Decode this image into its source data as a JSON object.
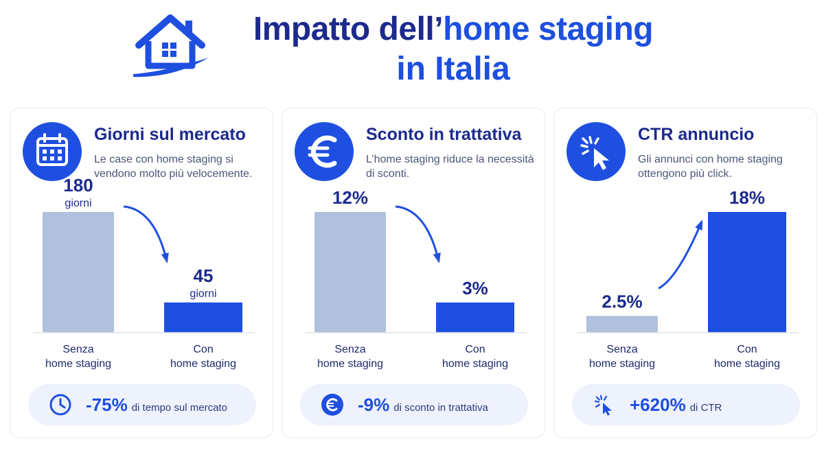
{
  "header": {
    "title_part1": "Impatto dell’",
    "title_part2": "home staging",
    "title_line2": "in Italia"
  },
  "colors": {
    "accent": "#1e4fe0",
    "navy": "#1c2a8c",
    "bar_before": "#b0c0dd",
    "bar_after": "#1e4fe0",
    "pill_bg": "#eef2fc"
  },
  "cards": [
    {
      "icon": "calendar-icon",
      "title": "Giorni sul mercato",
      "subtitle": "Le case con home staging si vendono molto più velocemente.",
      "pill_icon": "clock-icon",
      "pill_value": "-75%",
      "pill_text": "di tempo sul mercato"
    },
    {
      "icon": "euro-icon",
      "title": "Sconto in trattativa",
      "subtitle": "L’home staging riduce la necessità di sconti.",
      "pill_icon": "euro-icon",
      "pill_value": "-9%",
      "pill_text": "di sconto in trattativa"
    },
    {
      "icon": "cursor-click-icon",
      "title": "CTR annuncio",
      "subtitle": "Gli annunci con home staging ottengono più click.",
      "pill_icon": "cursor-click-icon",
      "pill_value": "+620%",
      "pill_text": "di CTR"
    }
  ],
  "chart_data": [
    {
      "type": "bar",
      "categories": [
        "Senza home staging",
        "Con home staging"
      ],
      "values": [
        180,
        45
      ],
      "value_labels": [
        "180",
        "45"
      ],
      "value_units": [
        "giorni",
        "giorni"
      ],
      "ylim": [
        0,
        180
      ],
      "trend": "down"
    },
    {
      "type": "bar",
      "categories": [
        "Senza home staging",
        "Con home staging"
      ],
      "values": [
        12,
        3
      ],
      "value_labels": [
        "12%",
        "3%"
      ],
      "value_units": [
        "",
        ""
      ],
      "ylim": [
        0,
        12
      ],
      "trend": "down"
    },
    {
      "type": "bar",
      "categories": [
        "Senza home staging",
        "Con home staging"
      ],
      "values": [
        2.5,
        18
      ],
      "value_labels": [
        "2.5%",
        "18%"
      ],
      "value_units": [
        "",
        ""
      ],
      "ylim": [
        0,
        18
      ],
      "trend": "up"
    }
  ]
}
